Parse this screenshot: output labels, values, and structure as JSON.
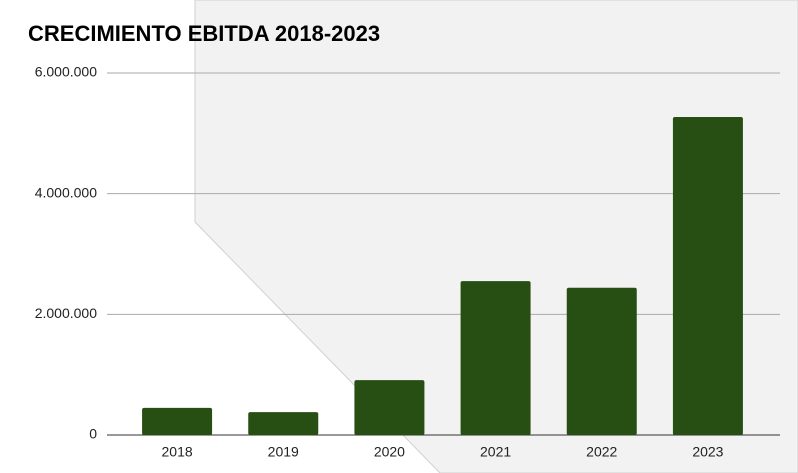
{
  "chart_data": {
    "type": "bar",
    "title": "CRECIMIENTO EBITDA 2018-2023",
    "categories": [
      "2018",
      "2019",
      "2020",
      "2021",
      "2022",
      "2023"
    ],
    "values": [
      450000,
      380000,
      910000,
      2550000,
      2440000,
      5270000
    ],
    "color": "#274e13",
    "ylim": [
      0,
      6000000
    ],
    "yticks": [
      0,
      {
        "value": 2000000,
        "label": "2.000.000"
      },
      {
        "value": 4000000,
        "label": "4.000.000"
      },
      {
        "value": 6000000,
        "label": "6.000.000"
      }
    ],
    "grid": true
  }
}
